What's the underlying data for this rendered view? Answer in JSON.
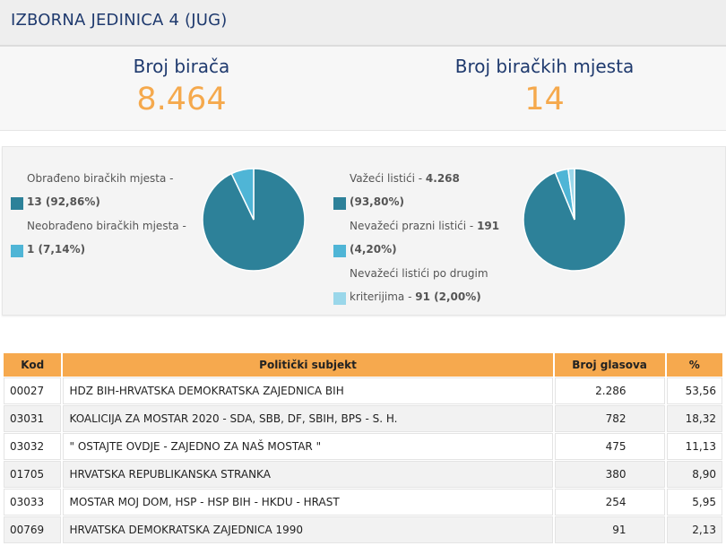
{
  "header": {
    "title": "IZBORNA JEDINICA 4 (JUG)"
  },
  "stats": {
    "voters_label": "Broj birača",
    "voters_value": "8.464",
    "stations_label": "Broj biračkih mjesta",
    "stations_value": "14"
  },
  "pie1": {
    "legend": [
      {
        "label": "Obrađeno biračkih mjesta - ",
        "value": "13 (92,86%)",
        "color": "#2d8199"
      },
      {
        "label": "Neobrađeno biračkih mjesta - ",
        "value": "1 (7,14%)",
        "color": "#4fb5d6"
      }
    ],
    "slices": [
      92.86,
      7.14
    ]
  },
  "pie2": {
    "legend": [
      {
        "label": "Važeći listići - ",
        "value": "4.268",
        "extra": "(93,80%)",
        "color": "#2d8199"
      },
      {
        "label": "Nevažeći prazni listići - ",
        "value": "191",
        "extra": "(4,20%)",
        "color": "#4fb5d6"
      },
      {
        "label": "Nevažeći listići po drugim kriterijima - ",
        "value": "91 (2,00%)",
        "color": "#9ad7ea"
      }
    ],
    "slices": [
      93.8,
      4.2,
      2.0
    ]
  },
  "table": {
    "headers": [
      "Kod",
      "Politički subjekt",
      "Broj glasova",
      "%"
    ],
    "rows": [
      [
        "00027",
        "HDZ BIH-HRVATSKA DEMOKRATSKA ZAJEDNICA BIH",
        "2.286",
        "53,56"
      ],
      [
        "03031",
        "KOALICIJA ZA MOSTAR 2020 - SDA, SBB, DF, SBIH, BPS - S. H.",
        "782",
        "18,32"
      ],
      [
        "03032",
        "\" OSTAJTE OVDJE - ZAJEDNO ZA NAŠ MOSTAR \"",
        "475",
        "11,13"
      ],
      [
        "01705",
        "HRVATSKA REPUBLIKANSKA STRANKA",
        "380",
        "8,90"
      ],
      [
        "03033",
        "MOSTAR MOJ DOM, HSP - HSP BIH - HKDU - HRAST",
        "254",
        "5,95"
      ],
      [
        "00769",
        "HRVATSKA DEMOKRATSKA ZAJEDNICA 1990",
        "91",
        "2,13"
      ]
    ]
  }
}
